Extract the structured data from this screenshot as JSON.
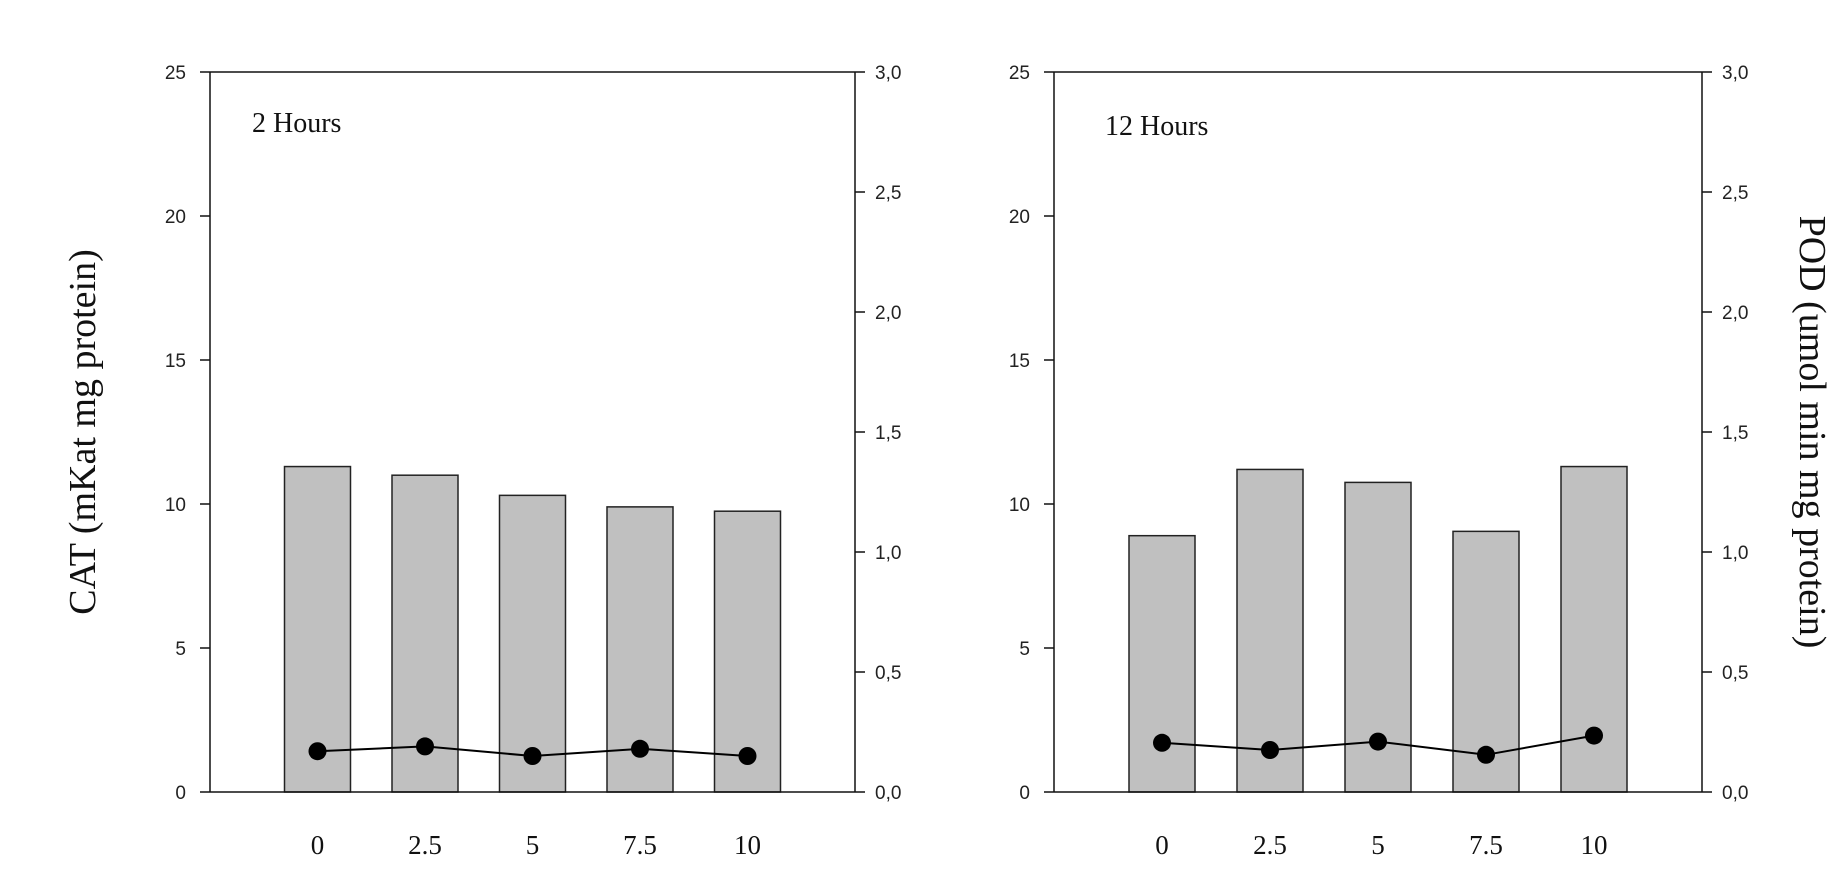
{
  "chart_data": [
    {
      "type": "bar",
      "panel_label": "2 Hours",
      "categories": [
        "0",
        "2.5",
        "5",
        "7.5",
        "10"
      ],
      "left_axis": {
        "label": "CAT (mKat mg protein)",
        "ylim": [
          0,
          25
        ],
        "ticks": [
          "0",
          "5",
          "10",
          "15",
          "20",
          "25"
        ]
      },
      "right_axis": {
        "label": "",
        "ylim": [
          0,
          3.0
        ],
        "ticks": [
          "0,0",
          "0,5",
          "1,0",
          "1,5",
          "2,0",
          "2,5",
          "3,0"
        ]
      },
      "series": [
        {
          "kind": "bar",
          "axis": "left",
          "color": "#c0c0c0",
          "values": [
            11.3,
            11.0,
            10.3,
            9.9,
            9.75
          ]
        },
        {
          "kind": "line",
          "axis": "right",
          "color": "#000000",
          "values": [
            0.17,
            0.19,
            0.15,
            0.18,
            0.15
          ]
        }
      ],
      "grid": false
    },
    {
      "type": "bar",
      "panel_label": "12 Hours",
      "categories": [
        "0",
        "2.5",
        "5",
        "7.5",
        "10"
      ],
      "left_axis": {
        "label": "",
        "ylim": [
          0,
          25
        ],
        "ticks": [
          "0",
          "5",
          "10",
          "15",
          "20",
          "25"
        ]
      },
      "right_axis": {
        "label": "POD (umol min mg protein)",
        "ylim": [
          0,
          3.0
        ],
        "ticks": [
          "0,0",
          "0,5",
          "1,0",
          "1,5",
          "2,0",
          "2,5",
          "3,0"
        ]
      },
      "series": [
        {
          "kind": "bar",
          "axis": "left",
          "color": "#c0c0c0",
          "values": [
            8.9,
            11.2,
            10.75,
            9.05,
            11.3
          ]
        },
        {
          "kind": "line",
          "axis": "right",
          "color": "#000000",
          "values": [
            0.205,
            0.175,
            0.21,
            0.155,
            0.235
          ]
        }
      ],
      "grid": false
    }
  ]
}
